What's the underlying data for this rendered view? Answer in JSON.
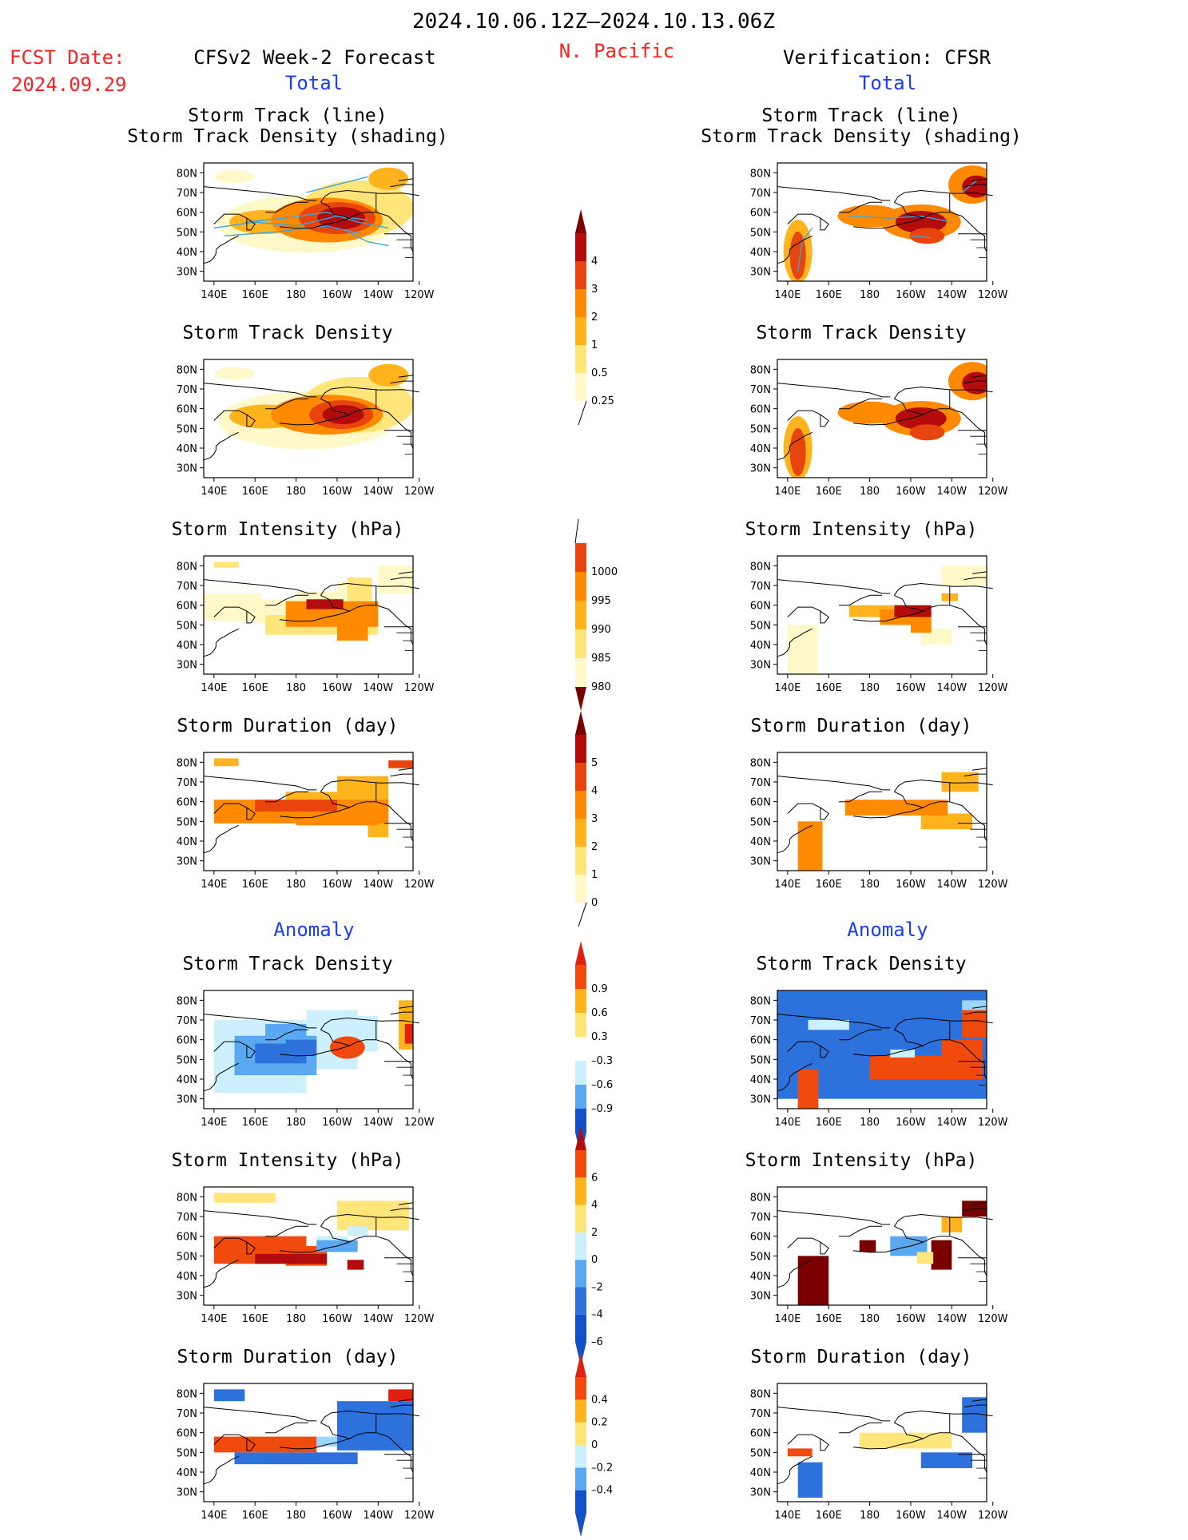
{
  "header": {
    "date_range": "2024.10.06.12Z—2024.10.13.06Z",
    "region": "N. Pacific",
    "fcst_label": "FCST Date:",
    "fcst_date": "2024.09.29",
    "left_title": "CFSv2 Week-2 Forecast",
    "right_title": "Verification: CFSR",
    "total_label": "Total",
    "anomaly_label": "Anomaly"
  },
  "colors": {
    "warm": [
      "#fff8c8",
      "#ffe57a",
      "#ffb41e",
      "#ff8a00",
      "#e8440e",
      "#b40c0c",
      "#7a0000"
    ],
    "cool": [
      "#cdf0ff",
      "#9ad6ff",
      "#5aa8f0",
      "#2d72dc",
      "#1450c8"
    ],
    "track_line": "#3aa6e0",
    "anom_pos": [
      "#ffe57a",
      "#ffb41e",
      "#ff8a00",
      "#f04a0c",
      "#e02010"
    ]
  },
  "map_axes": {
    "lon_ticks": [
      "140E",
      "160E",
      "180",
      "160W",
      "140W",
      "120W"
    ],
    "lat_ticks": [
      "80N",
      "70N",
      "60N",
      "50N",
      "40N",
      "30N"
    ]
  },
  "panel_titles": {
    "track": [
      "Storm Track (line)",
      "Storm Track Density (shading)"
    ],
    "density": "Storm Track Density",
    "intensity": "Storm Intensity (hPa)",
    "duration": "Storm Duration (day)"
  },
  "colorbars": [
    {
      "id": "density-colorbar",
      "labels": [
        "4",
        "3",
        "2",
        "1",
        "0.5",
        "0.25"
      ]
    },
    {
      "id": "intensity-colorbar",
      "labels": [
        "1000",
        "995",
        "990",
        "985",
        "980"
      ]
    },
    {
      "id": "duration-colorbar",
      "labels": [
        "5",
        "4",
        "3",
        "2",
        "1",
        "0"
      ]
    },
    {
      "id": "density-anom-colorbar",
      "labels": [
        "0.9",
        "0.6",
        "0.3",
        "–0.3",
        "–0.6",
        "–0.9"
      ]
    },
    {
      "id": "intensity-anom-colorbar",
      "labels": [
        "6",
        "4",
        "2",
        "0",
        "–2",
        "–4",
        "–6"
      ]
    },
    {
      "id": "duration-anom-colorbar",
      "labels": [
        "0.4",
        "0.2",
        "0",
        "–0.2",
        "–0.4"
      ]
    }
  ],
  "chart_data": [
    {
      "type": "heatmap",
      "panel": "forecast-total-track",
      "title": "Storm Track (line) / Storm Track Density (shading)",
      "max_level": 4
    },
    {
      "type": "heatmap",
      "panel": "verification-total-track",
      "title": "Storm Track (line) / Storm Track Density (shading)",
      "max_level": 4
    },
    {
      "type": "heatmap",
      "panel": "forecast-total-density",
      "title": "Storm Track Density",
      "max_level": 4
    },
    {
      "type": "heatmap",
      "panel": "verification-total-density",
      "title": "Storm Track Density",
      "max_level": 4
    },
    {
      "type": "heatmap",
      "panel": "forecast-total-intensity",
      "title": "Storm Intensity (hPa)",
      "min_value": 980
    },
    {
      "type": "heatmap",
      "panel": "verification-total-intensity",
      "title": "Storm Intensity (hPa)",
      "min_value": 980
    },
    {
      "type": "heatmap",
      "panel": "forecast-total-duration",
      "title": "Storm Duration (day)",
      "max_level": 5
    },
    {
      "type": "heatmap",
      "panel": "verification-total-duration",
      "title": "Storm Duration (day)",
      "max_level": 3
    },
    {
      "type": "heatmap",
      "panel": "forecast-anomaly-density",
      "title": "Storm Track Density"
    },
    {
      "type": "heatmap",
      "panel": "verification-anomaly-density",
      "title": "Storm Track Density"
    },
    {
      "type": "heatmap",
      "panel": "forecast-anomaly-intensity",
      "title": "Storm Intensity (hPa)"
    },
    {
      "type": "heatmap",
      "panel": "verification-anomaly-intensity",
      "title": "Storm Intensity (hPa)"
    },
    {
      "type": "heatmap",
      "panel": "forecast-anomaly-duration",
      "title": "Storm Duration (day)"
    },
    {
      "type": "heatmap",
      "panel": "verification-anomaly-duration",
      "title": "Storm Duration (day)"
    }
  ]
}
